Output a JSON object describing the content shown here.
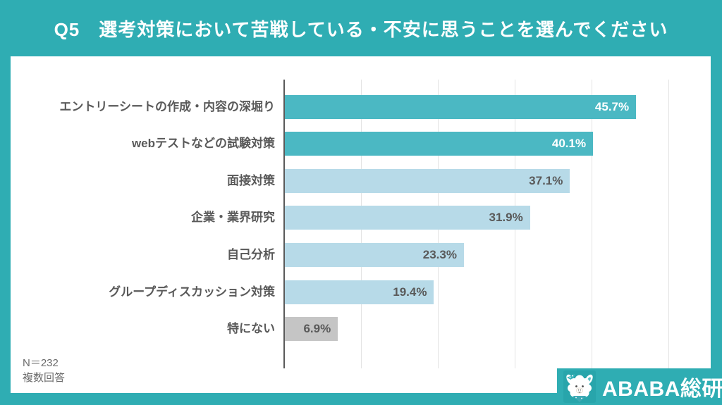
{
  "header": {
    "title": "Q5　選考対策において苦戦している・不安に思うことを選んでください"
  },
  "chart_data": {
    "type": "bar",
    "orientation": "horizontal",
    "title": "Q5 選考対策において苦戦している・不安に思うことを選んでください",
    "categories": [
      "エントリーシートの作成・内容の深堀り",
      "webテストなどの試験対策",
      "面接対策",
      "企業・業界研究",
      "自己分析",
      "グループディスカッション対策",
      "特にない"
    ],
    "values": [
      45.7,
      40.1,
      37.1,
      31.9,
      23.3,
      19.4,
      6.9
    ],
    "value_labels": [
      "45.7%",
      "40.1%",
      "37.1%",
      "31.9%",
      "23.3%",
      "19.4%",
      "6.9%"
    ],
    "xlim": [
      0,
      50
    ],
    "grid": true,
    "gridline_step": 10,
    "legend": false,
    "bar_colors": [
      "#4bb8c3",
      "#4bb8c3",
      "#b7dae8",
      "#b7dae8",
      "#b7dae8",
      "#b7dae8",
      "#c5c5c5"
    ],
    "value_label_colors": [
      "#ffffff",
      "#ffffff",
      "#595959",
      "#595959",
      "#595959",
      "#595959",
      "#595959"
    ]
  },
  "footer": {
    "sample_size": "N＝232",
    "note": "複数回答"
  },
  "logo": {
    "text": "ABABA総研",
    "icon": "alpaca-mascot-icon"
  },
  "colors": {
    "brand_teal": "#2fadb3",
    "bar_teal": "#4bb8c3",
    "bar_light_blue": "#b7dae8",
    "bar_gray": "#c5c5c5",
    "text_gray": "#595959",
    "white": "#ffffff"
  }
}
